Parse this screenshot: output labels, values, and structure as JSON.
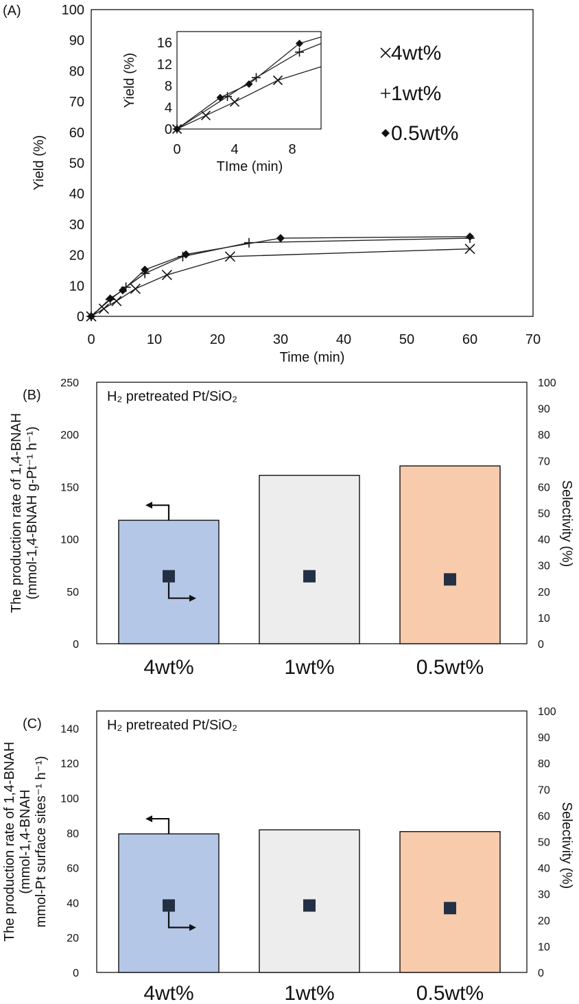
{
  "chart_data": [
    {
      "panel": "(A)",
      "type": "line",
      "xlabel": "Time (min)",
      "ylabel": "Yield (%)",
      "xlim": [
        0,
        70
      ],
      "ylim": [
        0,
        100
      ],
      "xticks": [
        0,
        10,
        20,
        30,
        40,
        50,
        60,
        70
      ],
      "yticks": [
        0,
        10,
        20,
        30,
        40,
        50,
        60,
        70,
        80,
        90,
        100
      ],
      "legend_position": "top-right",
      "series": [
        {
          "name": "4wt%",
          "marker": "x",
          "x": [
            0,
            2,
            4,
            7,
            12,
            22,
            60
          ],
          "y": [
            0,
            2.5,
            5,
            9,
            13.5,
            19.5,
            22
          ]
        },
        {
          "name": "1wt%",
          "marker": "+",
          "x": [
            0,
            3,
            5.5,
            8.5,
            14.5,
            25,
            60
          ],
          "y": [
            0,
            5.5,
            9.5,
            14,
            19.5,
            24,
            25.5
          ]
        },
        {
          "name": "0.5wt%",
          "marker": "diamond",
          "x": [
            0,
            3,
            5,
            8.5,
            15,
            30,
            60
          ],
          "y": [
            0,
            5.8,
            8.5,
            15.2,
            20.2,
            25.5,
            26
          ]
        }
      ],
      "inset": {
        "xlabel": "TIme (min)",
        "ylabel": "Yield (%)",
        "xlim": [
          0,
          10
        ],
        "ylim": [
          0,
          18
        ],
        "xticks": [
          0,
          4,
          8
        ],
        "yticks": [
          0,
          4,
          8,
          12,
          16
        ],
        "series": [
          {
            "name": "4wt%",
            "marker": "x",
            "x": [
              0,
              2,
              4,
              7,
              10
            ],
            "y": [
              0,
              2.5,
              5,
              9,
              11.5
            ]
          },
          {
            "name": "1wt%",
            "marker": "+",
            "x": [
              0,
              3.5,
              5.5,
              8.5,
              10
            ],
            "y": [
              0,
              6,
              9.5,
              14.2,
              15.8
            ]
          },
          {
            "name": "0.5wt%",
            "marker": "diamond",
            "x": [
              0,
              3,
              5,
              8.5,
              10
            ],
            "y": [
              0,
              5.8,
              8.3,
              15.8,
              17
            ]
          }
        ]
      }
    },
    {
      "panel": "(B)",
      "type": "bar",
      "annotation": "H₂ pretreated Pt/SiO₂",
      "ylabel": [
        "The production rate of 1,4-BNAH",
        "(mmol-1,4-BNAH g-Pt⁻¹ h⁻¹)"
      ],
      "y2label": "Selectivity  (%)",
      "ylim": [
        0,
        250
      ],
      "yticks": [
        0,
        50,
        100,
        150,
        200,
        250
      ],
      "y2lim": [
        0,
        100
      ],
      "y2ticks": [
        0,
        10,
        20,
        30,
        40,
        50,
        60,
        70,
        80,
        90,
        100
      ],
      "categories": [
        "4wt%",
        "1wt%",
        "0.5wt%"
      ],
      "bar_colors": [
        "#b4c7e7",
        "#ededed",
        "#f8cbad"
      ],
      "series": [
        {
          "axis": "left",
          "values": [
            118,
            161,
            170
          ]
        },
        {
          "axis": "right",
          "marker": "square",
          "values": [
            25.8,
            25.8,
            24.6
          ]
        }
      ]
    },
    {
      "panel": "(C)",
      "type": "bar",
      "annotation": "H₂ pretreated Pt/SiO₂",
      "ylabel": [
        "The production rate of 1,4-BNAH",
        "(mmol-1,4-BNAH",
        "mmol-Pt surface sites⁻¹ h⁻¹)"
      ],
      "y2label": "Selectivity  (%)",
      "ylim": [
        0,
        150
      ],
      "yticks": [
        0,
        20,
        40,
        60,
        80,
        100,
        120,
        140
      ],
      "y2lim": [
        0,
        100
      ],
      "y2ticks": [
        0,
        10,
        20,
        30,
        40,
        50,
        60,
        70,
        80,
        90,
        100
      ],
      "categories": [
        "4wt%",
        "1wt%",
        "0.5wt%"
      ],
      "bar_colors": [
        "#b4c7e7",
        "#ededed",
        "#f8cbad"
      ],
      "series": [
        {
          "axis": "left",
          "values": [
            79.5,
            81.8,
            80.8
          ]
        },
        {
          "axis": "right",
          "marker": "square",
          "values": [
            25.6,
            25.6,
            24.6
          ]
        }
      ]
    }
  ]
}
